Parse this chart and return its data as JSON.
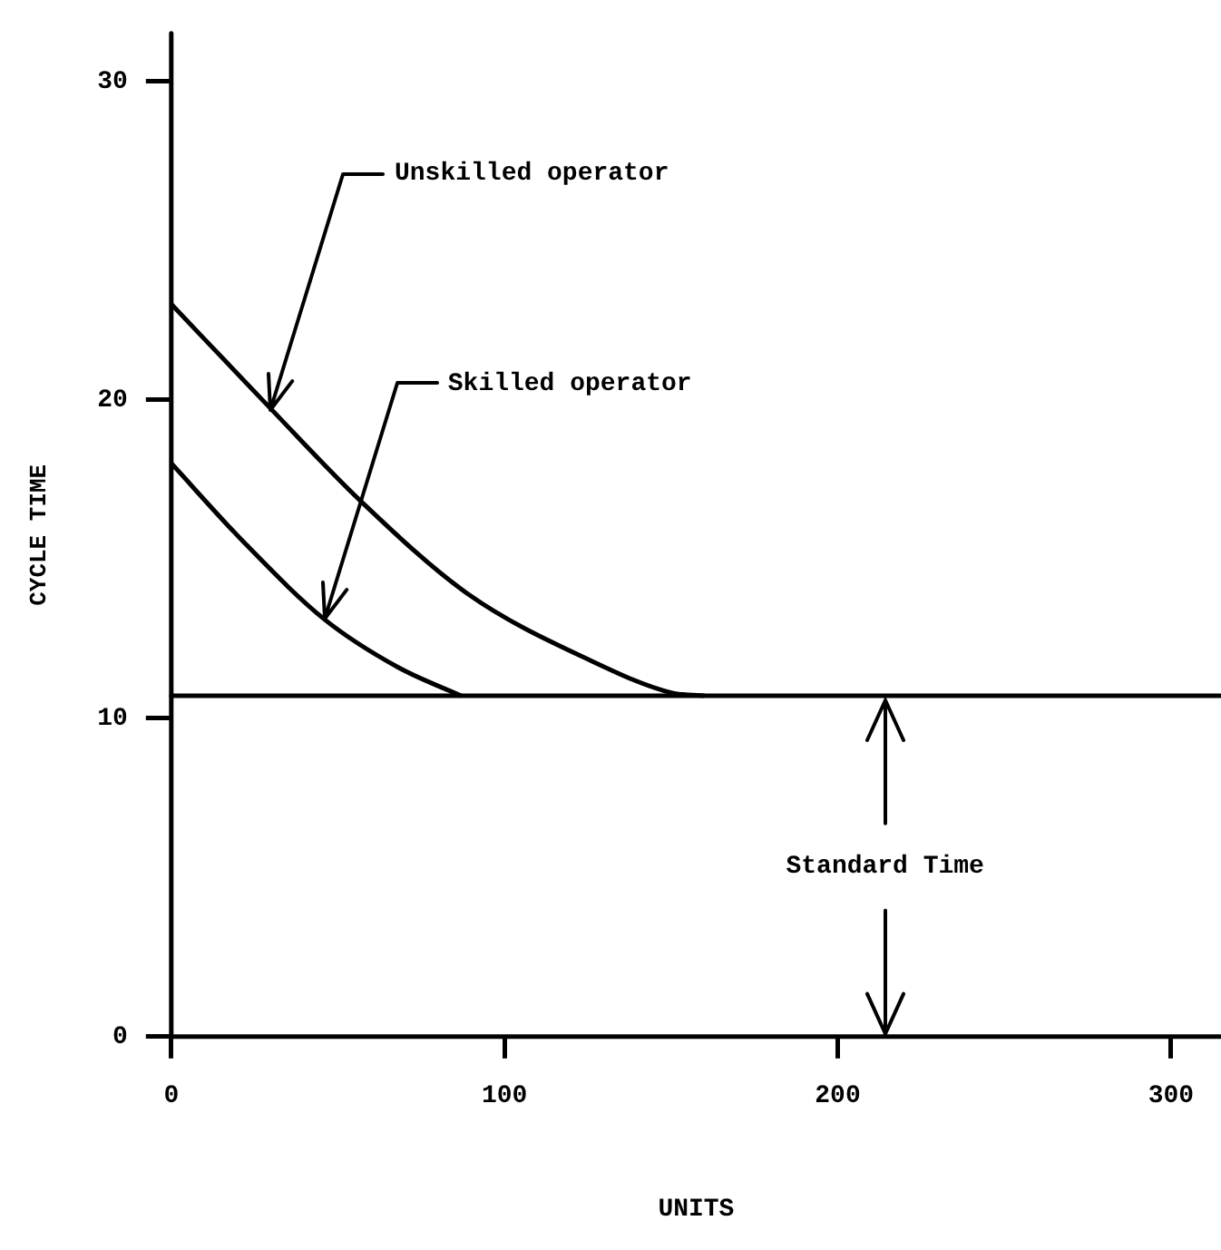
{
  "chart_data": {
    "type": "line",
    "xlabel": "UNITS",
    "ylabel": "CYCLE TIME",
    "xlim": [
      0,
      315
    ],
    "ylim": [
      0,
      31.5
    ],
    "xticks": [
      0,
      100,
      200,
      300
    ],
    "yticks": [
      0,
      10,
      20,
      30
    ],
    "grid": false,
    "legend": false,
    "marker": "none",
    "line_style": "solid",
    "series": [
      {
        "color": "#000000",
        "x": [
          0,
          30,
          57,
          89,
          126,
          150,
          160
        ],
        "values": [
          23,
          19.7,
          16.8,
          13.9,
          11.8,
          10.8,
          10.7
        ]
      },
      {
        "color": "#000000",
        "x": [
          0,
          22,
          46,
          68,
          87
        ],
        "values": [
          18,
          15.5,
          13.1,
          11.6,
          10.7
        ]
      }
    ],
    "ref_lines": [
      {
        "axis": "y",
        "value": 10.7,
        "label": "Standard Time",
        "color": "#000000"
      }
    ],
    "annotations": [
      {
        "text": "Unskilled operator",
        "x": 30,
        "y": 19.7
      },
      {
        "text": "Skilled operator",
        "x": 46,
        "y": 13.1
      }
    ]
  }
}
